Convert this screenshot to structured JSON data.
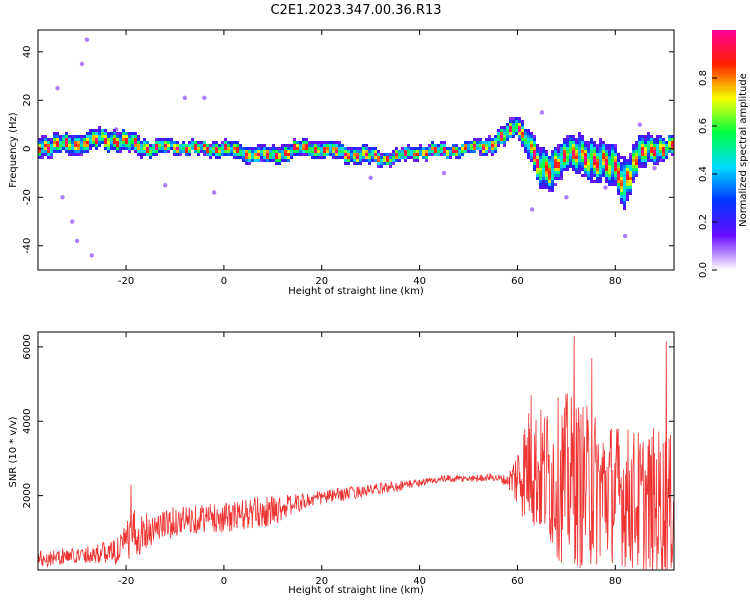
{
  "title": "C2E1.2023.347.00.36.R13",
  "colors": {
    "line": "#ee3333",
    "frame": "#000000"
  },
  "chart_data": [
    {
      "type": "heatmap",
      "xlabel": "Height of straight line (km)",
      "ylabel": "Frequency (Hz)",
      "xlim": [
        -38,
        92
      ],
      "ylim": [
        -50,
        49
      ],
      "x_ticks": [
        -20,
        0,
        20,
        40,
        60,
        80
      ],
      "x_tick_labels": [
        "-20",
        "0",
        "20",
        "40",
        "60",
        "80"
      ],
      "y_ticks": [
        -40,
        -20,
        0,
        20,
        40
      ],
      "y_tick_labels": [
        "-40",
        "-20",
        "0",
        "20",
        "40"
      ],
      "ridge": {
        "x": [
          -38,
          -30,
          -25,
          -20,
          -15,
          -10,
          -5,
          0,
          5,
          10,
          15,
          20,
          25,
          30,
          33,
          36,
          40,
          45,
          50,
          55,
          58,
          60,
          62,
          64,
          66,
          70,
          75,
          80,
          82,
          85,
          88,
          92
        ],
        "y": [
          1,
          2,
          4,
          3,
          0,
          1,
          0,
          0,
          -2,
          -3,
          0,
          0,
          -2,
          -3,
          -4,
          -3,
          -1,
          -1,
          0,
          2,
          6,
          10,
          4,
          -6,
          -10,
          -2,
          -4,
          -8,
          -14,
          -2,
          0,
          1
        ],
        "width": [
          3,
          3,
          3,
          3,
          2.5,
          2,
          2,
          2.5,
          2.5,
          2.5,
          2.5,
          2.5,
          2.5,
          2.5,
          2,
          2,
          2,
          2,
          2,
          2.5,
          3,
          3,
          4,
          6,
          6,
          5,
          6,
          6,
          7,
          5,
          4,
          3
        ]
      },
      "colorbar": {
        "label": "Normalized spectral amplitude",
        "range": [
          0,
          1
        ],
        "ticks": [
          0.0,
          0.2,
          0.4,
          0.6,
          0.8
        ],
        "tick_labels": [
          "0.0",
          "0.2",
          "0.4",
          "0.6",
          "0.8"
        ],
        "colormap": [
          "#ffffff",
          "#6a0dff",
          "#0033ff",
          "#00ddff",
          "#00ff44",
          "#f6ff00",
          "#ff2200",
          "#ff0099"
        ]
      }
    },
    {
      "type": "line",
      "xlabel": "Height of straight line (km)",
      "ylabel": "SNR (10 * v/v)",
      "xlim": [
        -38,
        92
      ],
      "ylim": [
        0,
        6400
      ],
      "x_ticks": [
        -20,
        0,
        20,
        40,
        60,
        80
      ],
      "x_tick_labels": [
        "-20",
        "0",
        "20",
        "40",
        "60",
        "80"
      ],
      "y_ticks": [
        2000,
        4000,
        6000
      ],
      "y_tick_labels": [
        "2000",
        "4000",
        "6000"
      ],
      "series": [
        {
          "name": "SNR",
          "trend": {
            "x": [
              -38,
              -30,
              -22,
              -18,
              -15,
              -10,
              -5,
              0,
              5,
              10,
              15,
              20,
              25,
              30,
              35,
              40,
              45,
              50,
              55,
              58,
              60,
              62,
              65,
              70,
              75,
              80,
              85,
              90,
              92
            ],
            "y": [
              300,
              400,
              500,
              1000,
              1100,
              1300,
              1400,
              1400,
              1500,
              1600,
              1800,
              1950,
              2050,
              2150,
              2250,
              2350,
              2450,
              2450,
              2500,
              2400,
              2500,
              2800,
              2600,
              2400,
              2200,
              2100,
              1800,
              1700,
              1700
            ],
            "amp": [
              250,
              200,
              350,
              700,
              450,
              400,
              400,
              400,
              450,
              400,
              250,
              200,
              180,
              150,
              150,
              100,
              100,
              100,
              100,
              150,
              900,
              1600,
              1800,
              2400,
              2200,
              1900,
              2000,
              2200,
              1800
            ]
          },
          "peaks": [
            {
              "x": 71.6,
              "y": 6300
            },
            {
              "x": 90.4,
              "y": 6150
            },
            {
              "x": 75.2,
              "y": 5700
            },
            {
              "x": 62.8,
              "y": 4700
            },
            {
              "x": -19.0,
              "y": 2300
            }
          ]
        }
      ]
    }
  ]
}
